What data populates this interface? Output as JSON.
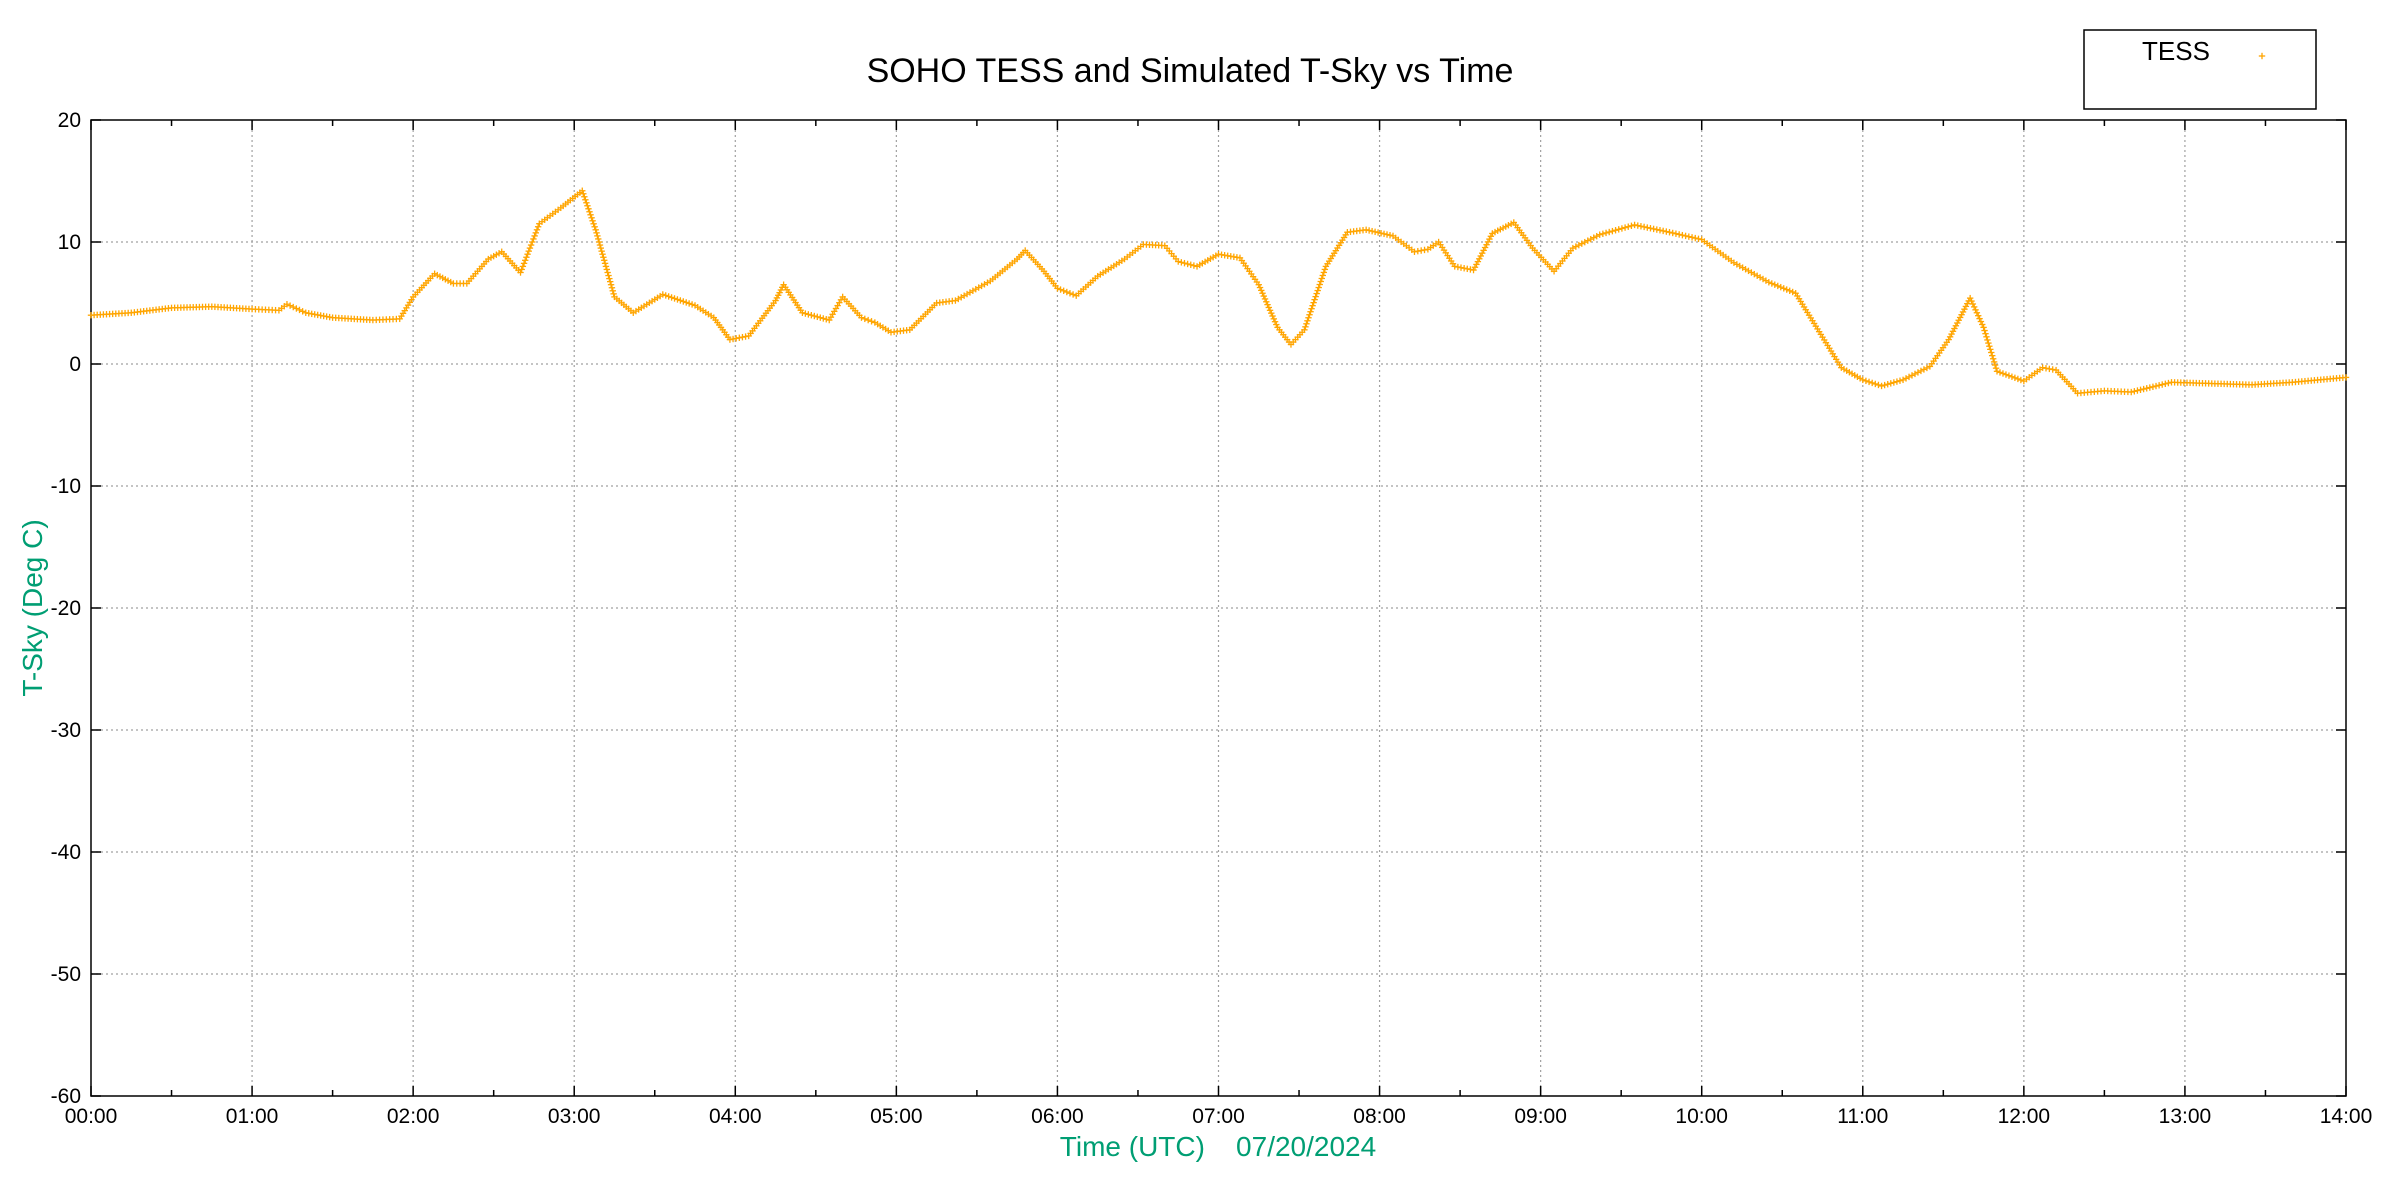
{
  "chart_data": {
    "type": "scatter",
    "title": "SOHO TESS and Simulated T-Sky vs Time",
    "xlabel": "Time (UTC)    07/20/2024",
    "ylabel": "T-Sky (Deg C)",
    "xlim": [
      "00:00",
      "14:00"
    ],
    "ylim": [
      -60,
      20
    ],
    "x_ticks": [
      "00:00",
      "01:00",
      "02:00",
      "03:00",
      "04:00",
      "05:00",
      "06:00",
      "07:00",
      "08:00",
      "09:00",
      "10:00",
      "11:00",
      "12:00",
      "13:00",
      "14:00"
    ],
    "y_ticks": [
      20,
      10,
      0,
      -10,
      -20,
      -30,
      -40,
      -50,
      -60
    ],
    "grid": true,
    "legend": {
      "position": "top-right",
      "entries": [
        "TESS"
      ]
    },
    "colors": {
      "series": "#ffa500",
      "axis_label": "#009e73",
      "grid": "#a0a0a0"
    },
    "series": [
      {
        "name": "TESS",
        "marker": "plus",
        "color": "#ffa500",
        "points": [
          [
            "00:00",
            4.0
          ],
          [
            "00:15",
            4.2
          ],
          [
            "00:30",
            4.6
          ],
          [
            "00:45",
            4.7
          ],
          [
            "01:00",
            4.5
          ],
          [
            "01:10",
            4.4
          ],
          [
            "01:13",
            4.9
          ],
          [
            "01:20",
            4.2
          ],
          [
            "01:30",
            3.8
          ],
          [
            "01:45",
            3.6
          ],
          [
            "01:55",
            3.7
          ],
          [
            "02:00",
            5.5
          ],
          [
            "02:08",
            7.4
          ],
          [
            "02:15",
            6.6
          ],
          [
            "02:20",
            6.6
          ],
          [
            "02:28",
            8.6
          ],
          [
            "02:33",
            9.2
          ],
          [
            "02:40",
            7.5
          ],
          [
            "02:47",
            11.5
          ],
          [
            "02:55",
            12.8
          ],
          [
            "03:03",
            14.2
          ],
          [
            "03:08",
            11.0
          ],
          [
            "03:15",
            5.5
          ],
          [
            "03:22",
            4.2
          ],
          [
            "03:33",
            5.7
          ],
          [
            "03:45",
            4.8
          ],
          [
            "03:52",
            3.8
          ],
          [
            "03:58",
            2.0
          ],
          [
            "04:05",
            2.3
          ],
          [
            "04:15",
            5.2
          ],
          [
            "04:18",
            6.5
          ],
          [
            "04:25",
            4.2
          ],
          [
            "04:35",
            3.6
          ],
          [
            "04:40",
            5.5
          ],
          [
            "04:47",
            3.8
          ],
          [
            "04:52",
            3.4
          ],
          [
            "04:58",
            2.6
          ],
          [
            "05:05",
            2.8
          ],
          [
            "05:15",
            5.0
          ],
          [
            "05:22",
            5.2
          ],
          [
            "05:35",
            6.8
          ],
          [
            "05:45",
            8.6
          ],
          [
            "05:48",
            9.3
          ],
          [
            "05:55",
            7.6
          ],
          [
            "06:00",
            6.2
          ],
          [
            "06:07",
            5.6
          ],
          [
            "06:15",
            7.2
          ],
          [
            "06:25",
            8.6
          ],
          [
            "06:32",
            9.8
          ],
          [
            "06:40",
            9.7
          ],
          [
            "06:45",
            8.4
          ],
          [
            "06:52",
            8.0
          ],
          [
            "07:00",
            9.0
          ],
          [
            "07:08",
            8.7
          ],
          [
            "07:15",
            6.5
          ],
          [
            "07:22",
            3.0
          ],
          [
            "07:27",
            1.6
          ],
          [
            "07:32",
            2.8
          ],
          [
            "07:40",
            8.0
          ],
          [
            "07:48",
            10.8
          ],
          [
            "07:55",
            11.0
          ],
          [
            "08:05",
            10.5
          ],
          [
            "08:13",
            9.2
          ],
          [
            "08:18",
            9.4
          ],
          [
            "08:22",
            10.0
          ],
          [
            "08:28",
            8.0
          ],
          [
            "08:35",
            7.7
          ],
          [
            "08:42",
            10.7
          ],
          [
            "08:50",
            11.6
          ],
          [
            "08:57",
            9.5
          ],
          [
            "09:05",
            7.6
          ],
          [
            "09:12",
            9.5
          ],
          [
            "09:22",
            10.6
          ],
          [
            "09:35",
            11.4
          ],
          [
            "09:48",
            10.8
          ],
          [
            "10:00",
            10.2
          ],
          [
            "10:12",
            8.3
          ],
          [
            "10:25",
            6.7
          ],
          [
            "10:35",
            5.8
          ],
          [
            "10:45",
            2.2
          ],
          [
            "10:52",
            -0.3
          ],
          [
            "11:00",
            -1.3
          ],
          [
            "11:07",
            -1.8
          ],
          [
            "11:15",
            -1.3
          ],
          [
            "11:25",
            -0.2
          ],
          [
            "11:32",
            2.0
          ],
          [
            "11:40",
            5.4
          ],
          [
            "11:45",
            3.0
          ],
          [
            "11:50",
            -0.6
          ],
          [
            "12:00",
            -1.4
          ],
          [
            "12:07",
            -0.3
          ],
          [
            "12:12",
            -0.5
          ],
          [
            "12:20",
            -2.4
          ],
          [
            "12:30",
            -2.2
          ],
          [
            "12:40",
            -2.3
          ],
          [
            "12:55",
            -1.5
          ],
          [
            "13:10",
            -1.6
          ],
          [
            "13:25",
            -1.7
          ],
          [
            "13:40",
            -1.5
          ],
          [
            "14:00",
            -1.1
          ]
        ]
      }
    ]
  }
}
